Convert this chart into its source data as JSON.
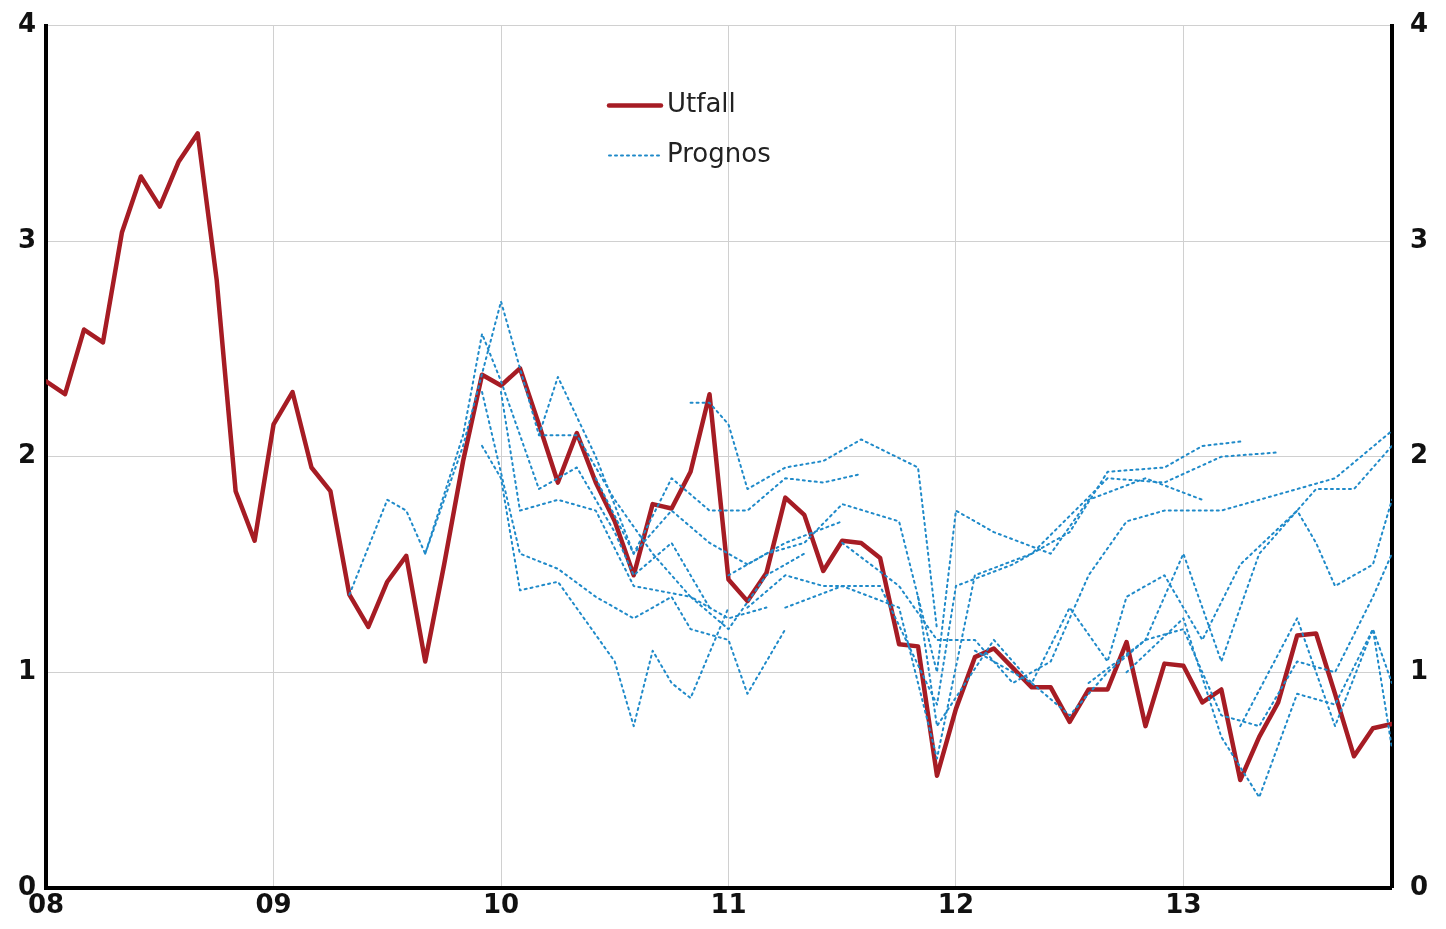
{
  "chart_data": {
    "type": "line",
    "xlim": [
      "2008-01",
      "2013-12"
    ],
    "xticks": [
      {
        "value": "2008-01",
        "label": "08"
      },
      {
        "value": "2009-01",
        "label": "09"
      },
      {
        "value": "2010-01",
        "label": "10"
      },
      {
        "value": "2011-01",
        "label": "11"
      },
      {
        "value": "2012-01",
        "label": "12"
      },
      {
        "value": "2013-01",
        "label": "13"
      }
    ],
    "ylim": [
      0,
      4
    ],
    "yticks": [
      0,
      1,
      2,
      3,
      4
    ],
    "y2lim": [
      0,
      4
    ],
    "y2ticks": [
      0,
      1,
      2,
      3,
      4
    ],
    "grid": true,
    "legend": "top",
    "marker": "none",
    "series": [
      {
        "name": "Utfall",
        "color": "#a61c24",
        "line_style": "solid",
        "x": [
          "2008-01",
          "2008-02",
          "2008-03",
          "2008-04",
          "2008-05",
          "2008-06",
          "2008-07",
          "2008-08",
          "2008-09",
          "2008-10",
          "2008-11",
          "2008-12",
          "2009-01",
          "2009-02",
          "2009-03",
          "2009-04",
          "2009-05",
          "2009-06",
          "2009-07",
          "2009-08",
          "2009-09",
          "2009-10",
          "2009-11",
          "2009-12",
          "2010-01",
          "2010-02",
          "2010-03",
          "2010-04",
          "2010-05",
          "2010-06",
          "2010-07",
          "2010-08",
          "2010-09",
          "2010-10",
          "2010-11",
          "2010-12",
          "2011-01",
          "2011-02",
          "2011-03",
          "2011-04",
          "2011-05",
          "2011-06",
          "2011-07",
          "2011-08",
          "2011-09",
          "2011-10",
          "2011-11",
          "2011-12",
          "2012-01",
          "2012-02",
          "2012-03",
          "2012-04",
          "2012-05",
          "2012-06",
          "2012-07",
          "2012-08",
          "2012-09",
          "2012-10",
          "2012-11",
          "2012-12",
          "2013-01",
          "2013-02",
          "2013-03",
          "2013-04",
          "2013-05",
          "2013-06",
          "2013-07",
          "2013-08",
          "2013-09",
          "2013-10",
          "2013-11",
          "2013-12"
        ],
        "values": [
          2.35,
          2.29,
          2.59,
          2.53,
          3.04,
          3.3,
          3.16,
          3.37,
          3.5,
          2.82,
          1.84,
          1.61,
          2.15,
          2.3,
          1.95,
          1.84,
          1.36,
          1.21,
          1.42,
          1.54,
          1.05,
          1.5,
          1.98,
          2.38,
          2.33,
          2.41,
          2.15,
          1.88,
          2.11,
          1.88,
          1.7,
          1.45,
          1.78,
          1.76,
          1.93,
          2.29,
          1.43,
          1.33,
          1.46,
          1.81,
          1.73,
          1.47,
          1.61,
          1.6,
          1.53,
          1.13,
          1.12,
          0.52,
          0.83,
          1.07,
          1.11,
          1.02,
          0.93,
          0.93,
          0.77,
          0.92,
          0.92,
          1.14,
          0.75,
          1.04,
          1.03,
          0.86,
          0.92,
          0.5,
          0.7,
          0.86,
          1.17,
          1.18,
          0.9,
          0.61,
          0.74,
          0.76
        ]
      },
      {
        "name": "Prognos",
        "color": "#1f8ac9",
        "line_style": "dotted",
        "x": [
          "2009-05",
          "2009-07",
          "2009-08",
          "2009-09",
          "2009-11",
          "2009-12",
          "2010-01",
          "2010-03",
          "2010-05",
          "2010-07",
          "2010-08",
          "2010-10",
          "2010-12"
        ],
        "values": [
          1.36,
          1.8,
          1.75,
          1.55,
          2.1,
          2.57,
          2.35,
          1.85,
          1.95,
          1.65,
          1.45,
          1.6,
          1.3
        ]
      },
      {
        "color": "#1f8ac9",
        "line_style": "dotted",
        "x": [
          "2009-09",
          "2009-11",
          "2010-01",
          "2010-03",
          "2010-05",
          "2010-07",
          "2010-09",
          "2010-11",
          "2011-01",
          "2011-03"
        ],
        "values": [
          1.55,
          2.05,
          2.72,
          2.1,
          2.1,
          1.8,
          1.55,
          1.35,
          1.25,
          1.3
        ]
      },
      {
        "color": "#1f8ac9",
        "line_style": "dotted",
        "x": [
          "2009-12",
          "2010-01",
          "2010-02",
          "2010-04",
          "2010-07",
          "2010-08",
          "2010-09",
          "2010-10",
          "2010-11",
          "2011-01"
        ],
        "values": [
          2.05,
          1.9,
          1.38,
          1.42,
          1.05,
          0.75,
          1.1,
          0.95,
          0.88,
          1.3
        ]
      },
      {
        "color": "#1f8ac9",
        "line_style": "dotted",
        "x": [
          "2009-12",
          "2010-02",
          "2010-04",
          "2010-06",
          "2010-08",
          "2010-10",
          "2010-11",
          "2011-01",
          "2011-02",
          "2011-04"
        ],
        "values": [
          2.3,
          1.55,
          1.48,
          1.35,
          1.25,
          1.35,
          1.2,
          1.15,
          0.9,
          1.2
        ]
      },
      {
        "color": "#1f8ac9",
        "line_style": "dotted",
        "x": [
          "2010-01",
          "2010-02",
          "2010-04",
          "2010-06",
          "2010-08",
          "2010-11",
          "2011-01",
          "2011-03",
          "2011-05"
        ],
        "values": [
          2.3,
          1.75,
          1.8,
          1.75,
          1.4,
          1.35,
          1.2,
          1.45,
          1.55
        ]
      },
      {
        "color": "#1f8ac9",
        "line_style": "dotted",
        "x": [
          "2010-03",
          "2010-04",
          "2010-06",
          "2010-08",
          "2010-10",
          "2010-12",
          "2011-02",
          "2011-04",
          "2011-07"
        ],
        "values": [
          2.1,
          2.37,
          2.0,
          1.55,
          1.75,
          1.6,
          1.5,
          1.6,
          1.7
        ]
      },
      {
        "color": "#1f8ac9",
        "line_style": "dotted",
        "x": [
          "2010-06",
          "2010-08",
          "2010-10",
          "2010-12",
          "2011-02",
          "2011-04",
          "2011-06",
          "2011-08"
        ],
        "values": [
          1.9,
          1.55,
          1.9,
          1.75,
          1.75,
          1.9,
          1.88,
          1.92
        ]
      },
      {
        "color": "#1f8ac9",
        "line_style": "dotted",
        "x": [
          "2010-11",
          "2010-12",
          "2011-01",
          "2011-02",
          "2011-04",
          "2011-06",
          "2011-08",
          "2011-11",
          "2011-12"
        ],
        "values": [
          2.25,
          2.25,
          2.15,
          1.85,
          1.95,
          1.98,
          2.08,
          1.95,
          1.2
        ]
      },
      {
        "color": "#1f8ac9",
        "line_style": "dotted",
        "x": [
          "2011-01",
          "2011-03",
          "2011-05",
          "2011-07",
          "2011-10",
          "2011-12",
          "2012-01",
          "2012-03",
          "2012-06",
          "2012-08",
          "2012-11",
          "2013-02"
        ],
        "values": [
          1.45,
          1.55,
          1.6,
          1.78,
          1.7,
          1.0,
          1.75,
          1.65,
          1.55,
          1.8,
          1.9,
          1.8
        ]
      },
      {
        "color": "#1f8ac9",
        "line_style": "dotted",
        "x": [
          "2011-02",
          "2011-04",
          "2011-06",
          "2011-09",
          "2011-12",
          "2012-01",
          "2012-04",
          "2012-07",
          "2012-09",
          "2012-12",
          "2013-02",
          "2013-04"
        ],
        "values": [
          1.3,
          1.45,
          1.4,
          1.4,
          0.85,
          1.4,
          1.5,
          1.65,
          1.93,
          1.95,
          2.05,
          2.07
        ]
      },
      {
        "color": "#1f8ac9",
        "line_style": "dotted",
        "x": [
          "2011-04",
          "2011-07",
          "2011-10",
          "2011-12",
          "2012-02",
          "2012-05",
          "2012-09",
          "2012-12",
          "2013-03",
          "2013-06"
        ],
        "values": [
          1.3,
          1.4,
          1.3,
          0.6,
          1.45,
          1.55,
          1.9,
          1.88,
          2.0,
          2.02
        ]
      },
      {
        "color": "#1f8ac9",
        "line_style": "dotted",
        "x": [
          "2011-07",
          "2011-10",
          "2011-12",
          "2012-02",
          "2012-04",
          "2012-06",
          "2012-08",
          "2012-10",
          "2012-12",
          "2013-03",
          "2013-07",
          "2013-09",
          "2013-12"
        ],
        "values": [
          1.6,
          1.4,
          1.15,
          1.15,
          0.95,
          1.05,
          1.45,
          1.7,
          1.75,
          1.75,
          1.85,
          1.9,
          2.12
        ]
      },
      {
        "color": "#1f8ac9",
        "line_style": "dotted",
        "x": [
          "2011-11",
          "2011-12",
          "2012-03",
          "2012-05",
          "2012-07",
          "2012-09",
          "2012-10",
          "2012-12",
          "2013-02",
          "2013-04",
          "2013-07",
          "2013-08",
          "2013-10",
          "2013-12"
        ],
        "values": [
          1.35,
          0.75,
          1.15,
          0.95,
          1.3,
          1.05,
          1.35,
          1.45,
          1.15,
          1.5,
          1.75,
          1.85,
          1.85,
          2.05
        ]
      },
      {
        "color": "#1f8ac9",
        "line_style": "dotted",
        "x": [
          "2012-02",
          "2012-05",
          "2012-07",
          "2012-09",
          "2012-11",
          "2013-01",
          "2013-03",
          "2013-05",
          "2013-07",
          "2013-08",
          "2013-09",
          "2013-11",
          "2013-12"
        ],
        "values": [
          1.1,
          0.95,
          0.8,
          1.0,
          1.15,
          1.55,
          1.05,
          1.55,
          1.75,
          1.6,
          1.4,
          1.5,
          1.8
        ]
      },
      {
        "color": "#1f8ac9",
        "line_style": "dotted",
        "x": [
          "2012-08",
          "2012-11",
          "2013-01",
          "2013-03",
          "2013-05",
          "2013-07",
          "2013-09",
          "2013-11",
          "2013-12"
        ],
        "values": [
          0.95,
          1.15,
          1.2,
          0.8,
          0.75,
          1.05,
          1.0,
          1.35,
          1.55
        ]
      },
      {
        "color": "#1f8ac9",
        "line_style": "dotted",
        "x": [
          "2012-10",
          "2013-01",
          "2013-03",
          "2013-05",
          "2013-07",
          "2013-09",
          "2013-11",
          "2013-12"
        ],
        "values": [
          1.0,
          1.25,
          0.7,
          0.42,
          0.9,
          0.85,
          1.2,
          0.95
        ]
      },
      {
        "color": "#1f8ac9",
        "line_style": "dotted",
        "x": [
          "2013-04",
          "2013-07",
          "2013-09",
          "2013-11",
          "2013-12"
        ],
        "values": [
          0.75,
          1.25,
          0.75,
          1.2,
          0.65
        ]
      }
    ]
  }
}
